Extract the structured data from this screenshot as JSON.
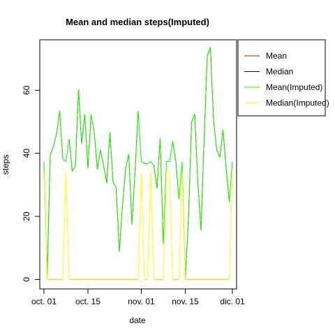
{
  "chart_data": {
    "type": "line",
    "title": "Mean and median steps(Imputed)",
    "xlabel": "date",
    "ylabel": "steps",
    "xlim": [
      "2012-10-01",
      "2012-11-30"
    ],
    "ylim": [
      -3,
      76
    ],
    "x_ticks": [
      {
        "date": "2012-10-01",
        "label": "oct. 01"
      },
      {
        "date": "2012-10-15",
        "label": "oct. 15"
      },
      {
        "date": "2012-11-01",
        "label": "nov. 01"
      },
      {
        "date": "2012-11-15",
        "label": "nov. 15"
      },
      {
        "date": "2012-11-30",
        "label": "dic. 01"
      }
    ],
    "y_ticks": [
      0,
      20,
      40,
      60
    ],
    "grid": false,
    "legend_position": "top-right-outside",
    "x": [
      "2012-10-01",
      "2012-10-02",
      "2012-10-03",
      "2012-10-04",
      "2012-10-05",
      "2012-10-06",
      "2012-10-07",
      "2012-10-08",
      "2012-10-09",
      "2012-10-10",
      "2012-10-11",
      "2012-10-12",
      "2012-10-13",
      "2012-10-14",
      "2012-10-15",
      "2012-10-16",
      "2012-10-17",
      "2012-10-18",
      "2012-10-19",
      "2012-10-20",
      "2012-10-21",
      "2012-10-22",
      "2012-10-23",
      "2012-10-24",
      "2012-10-25",
      "2012-10-26",
      "2012-10-27",
      "2012-10-28",
      "2012-10-29",
      "2012-10-30",
      "2012-10-31",
      "2012-11-01",
      "2012-11-02",
      "2012-11-03",
      "2012-11-04",
      "2012-11-05",
      "2012-11-06",
      "2012-11-07",
      "2012-11-08",
      "2012-11-09",
      "2012-11-10",
      "2012-11-11",
      "2012-11-12",
      "2012-11-13",
      "2012-11-14",
      "2012-11-15",
      "2012-11-16",
      "2012-11-17",
      "2012-11-18",
      "2012-11-19",
      "2012-11-20",
      "2012-11-21",
      "2012-11-22",
      "2012-11-23",
      "2012-11-24",
      "2012-11-25",
      "2012-11-26",
      "2012-11-27",
      "2012-11-28",
      "2012-11-29",
      "2012-11-30"
    ],
    "series": [
      {
        "name": "Mean",
        "color": "#ff0000",
        "values": [
          null,
          0.4,
          39.4,
          42.1,
          46.2,
          53.5,
          38.2,
          null,
          44.5,
          34.4,
          35.8,
          60.4,
          43.1,
          52.4,
          35.2,
          52.4,
          46.7,
          34.9,
          41.1,
          36.1,
          30.6,
          46.7,
          30.9,
          29.0,
          8.7,
          23.5,
          35.1,
          39.8,
          17.4,
          34.1,
          53.5,
          null,
          36.8,
          36.7,
          null,
          36.2,
          28.9,
          44.7,
          11.2,
          null,
          null,
          43.8,
          37.4,
          25.5,
          null,
          0.1,
          18.9,
          49.8,
          52.5,
          30.7,
          15.5,
          44.4,
          70.9,
          73.6,
          50.3,
          41.1,
          38.8,
          47.4,
          35.4,
          24.5,
          null
        ]
      },
      {
        "name": "Median",
        "color": "#00008b",
        "values": [
          null,
          0,
          0,
          0,
          0,
          0,
          0,
          null,
          0,
          0,
          0,
          0,
          0,
          0,
          0,
          0,
          0,
          0,
          0,
          0,
          0,
          0,
          0,
          0,
          0,
          0,
          0,
          0,
          0,
          0,
          0,
          null,
          0,
          0,
          null,
          0,
          0,
          0,
          0,
          null,
          null,
          0,
          0,
          0,
          null,
          0,
          0,
          0,
          0,
          0,
          0,
          0,
          0,
          0,
          0,
          0,
          0,
          0,
          0,
          0,
          null
        ]
      },
      {
        "name": "Mean(Imputed)",
        "color": "#00ff00",
        "values": [
          37.4,
          0.4,
          39.4,
          42.1,
          46.2,
          53.5,
          38.2,
          37.4,
          44.5,
          34.4,
          35.8,
          60.4,
          43.1,
          52.4,
          35.2,
          52.4,
          46.7,
          34.9,
          41.1,
          36.1,
          30.6,
          46.7,
          30.9,
          29.0,
          8.7,
          23.5,
          35.1,
          39.8,
          17.4,
          34.1,
          53.5,
          37.4,
          36.8,
          36.7,
          37.4,
          36.2,
          28.9,
          44.7,
          11.2,
          37.4,
          37.4,
          43.8,
          37.4,
          25.5,
          37.4,
          0.1,
          18.9,
          49.8,
          52.5,
          30.7,
          15.5,
          44.4,
          70.9,
          73.6,
          50.3,
          41.1,
          38.8,
          47.4,
          35.4,
          24.5,
          37.4
        ]
      },
      {
        "name": "Median(Imputed)",
        "color": "#ffff00",
        "values": [
          34.1,
          0,
          0,
          0,
          0,
          0,
          0,
          34.1,
          0,
          0,
          0,
          0,
          0,
          0,
          0,
          0,
          0,
          0,
          0,
          0,
          0,
          0,
          0,
          0,
          0,
          0,
          0,
          0,
          0,
          0,
          0,
          34.1,
          0,
          0,
          34.1,
          0,
          0,
          0,
          0,
          34.1,
          34.1,
          0,
          0,
          0,
          34.1,
          0,
          0,
          0,
          0,
          0,
          0,
          0,
          0,
          0,
          0,
          0,
          0,
          0,
          0,
          0,
          34.1
        ]
      }
    ]
  }
}
